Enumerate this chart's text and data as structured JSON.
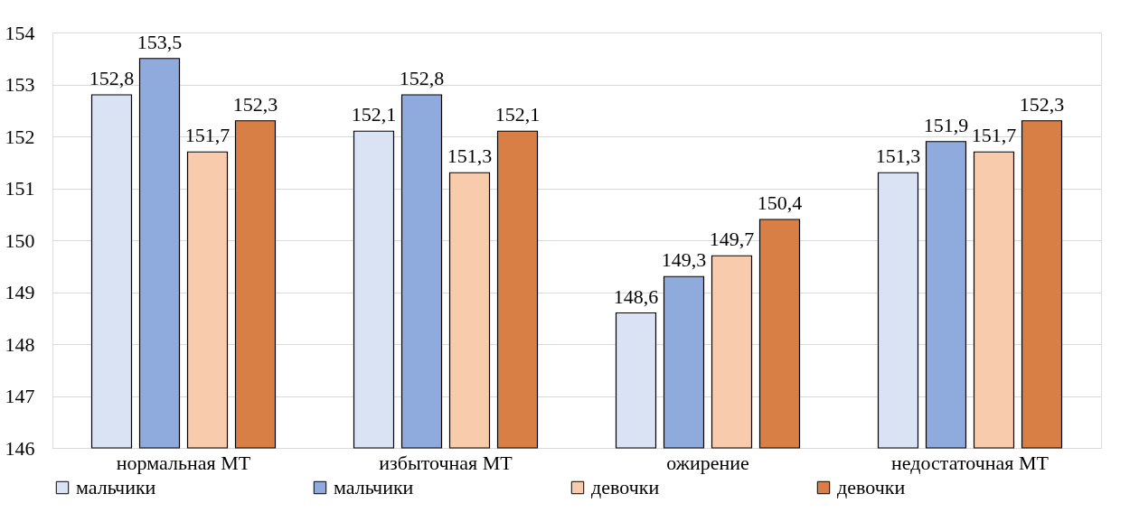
{
  "chart_data": {
    "type": "bar",
    "categories": [
      "нормальная МТ",
      "избыточная МТ",
      "ожирение",
      "недостаточная МТ"
    ],
    "series": [
      {
        "name": "мальчики",
        "color": "#dae3f3",
        "values": [
          152.8,
          152.1,
          148.6,
          151.3
        ],
        "value_labels": [
          "152,8",
          "152,1",
          "148,6",
          "151,3"
        ]
      },
      {
        "name": "мальчики",
        "color": "#8faadc",
        "values": [
          153.5,
          152.8,
          149.3,
          151.9
        ],
        "value_labels": [
          "153,5",
          "152,8",
          "149,3",
          "151,9"
        ]
      },
      {
        "name": "девочки",
        "color": "#f8cbad",
        "values": [
          151.7,
          151.3,
          149.7,
          151.7
        ],
        "value_labels": [
          "151,7",
          "151,3",
          "149,7",
          "151,7"
        ]
      },
      {
        "name": "девочки",
        "color": "#d77f45",
        "values": [
          152.3,
          152.1,
          150.4,
          152.3
        ],
        "value_labels": [
          "152,3",
          "152,1",
          "150,4",
          "152,3"
        ]
      }
    ],
    "ylim": [
      146,
      154
    ],
    "yticks": [
      146,
      147,
      148,
      149,
      150,
      151,
      152,
      153,
      154
    ],
    "grid": "y",
    "legend": "bottom"
  }
}
